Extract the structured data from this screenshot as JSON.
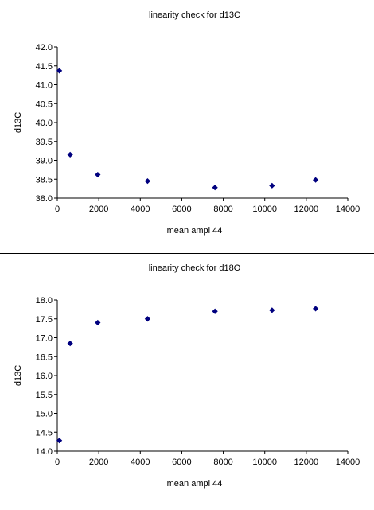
{
  "chart_data": [
    {
      "type": "scatter",
      "title": "linearity check for d13C",
      "xlabel": "mean ampl 44",
      "ylabel": "d13C",
      "xlim": [
        0,
        14000
      ],
      "ylim": [
        38.0,
        42.0
      ],
      "xticks": [
        "0",
        "2000",
        "4000",
        "6000",
        "8000",
        "10000",
        "12000",
        "14000"
      ],
      "yticks": [
        "38.0",
        "38.5",
        "39.0",
        "39.5",
        "40.0",
        "40.5",
        "41.0",
        "41.5",
        "42.0"
      ],
      "grid": false,
      "legend": "none",
      "marker_color": "#00007f",
      "x": [
        100,
        620,
        1950,
        4350,
        7600,
        10350,
        12450
      ],
      "y": [
        41.37,
        39.15,
        38.62,
        38.45,
        38.28,
        38.33,
        38.48
      ]
    },
    {
      "type": "scatter",
      "title": "linearity check for d18O",
      "xlabel": "mean ampl 44",
      "ylabel": "d13C",
      "xlim": [
        0,
        14000
      ],
      "ylim": [
        14.0,
        18.0
      ],
      "xticks": [
        "0",
        "2000",
        "4000",
        "6000",
        "8000",
        "10000",
        "12000",
        "14000"
      ],
      "yticks": [
        "14.0",
        "14.5",
        "15.0",
        "15.5",
        "16.0",
        "16.5",
        "17.0",
        "17.5",
        "18.0"
      ],
      "grid": false,
      "legend": "none",
      "marker_color": "#00007f",
      "x": [
        100,
        620,
        1950,
        4350,
        7600,
        10350,
        12450
      ],
      "y": [
        14.28,
        16.85,
        17.4,
        17.5,
        17.7,
        17.73,
        17.77
      ]
    }
  ]
}
